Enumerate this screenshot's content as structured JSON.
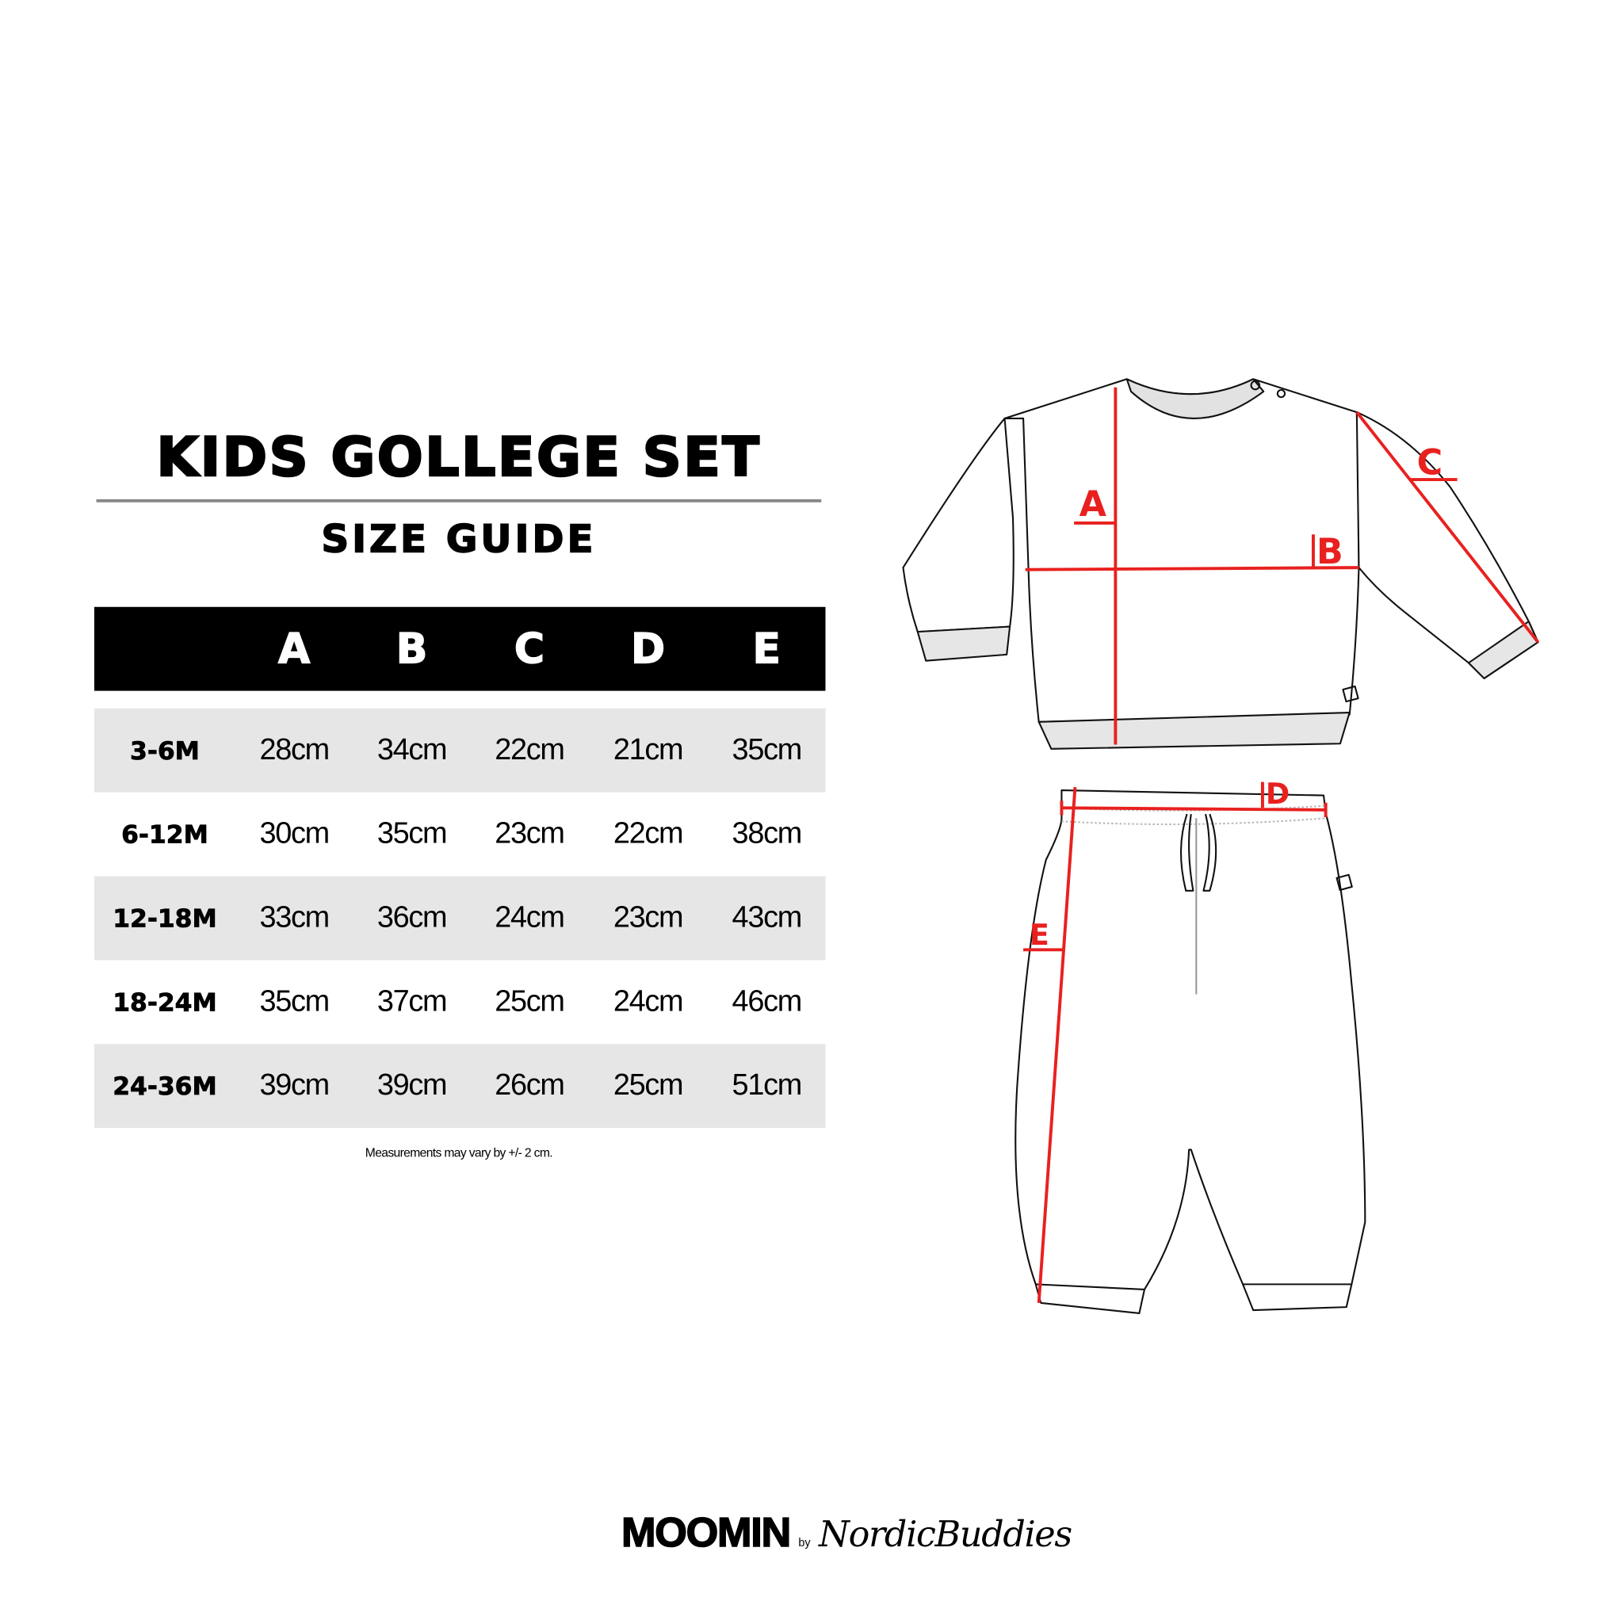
{
  "title": "KIDS GOLLEGE SET",
  "subtitle": "SIZE GUIDE",
  "table": {
    "columns": [
      "",
      "A",
      "B",
      "C",
      "D",
      "E"
    ],
    "rows": [
      [
        "3-6M",
        "28cm",
        "34cm",
        "22cm",
        "21cm",
        "35cm"
      ],
      [
        "6-12M",
        "30cm",
        "35cm",
        "23cm",
        "22cm",
        "38cm"
      ],
      [
        "12-18M",
        "33cm",
        "36cm",
        "24cm",
        "23cm",
        "43cm"
      ],
      [
        "18-24M",
        "35cm",
        "37cm",
        "25cm",
        "24cm",
        "46cm"
      ],
      [
        "24-36M",
        "39cm",
        "39cm",
        "26cm",
        "25cm",
        "51cm"
      ]
    ]
  },
  "note": "Measurements may vary by +/- 2 cm.",
  "diagram": {
    "labels": {
      "a": "A",
      "b": "B",
      "c": "C",
      "d": "D",
      "e": "E"
    },
    "measure_color": "#e8211f"
  },
  "logo": {
    "brand": "MOOMIN",
    "by": "by",
    "partner": "NordicBuddies"
  }
}
